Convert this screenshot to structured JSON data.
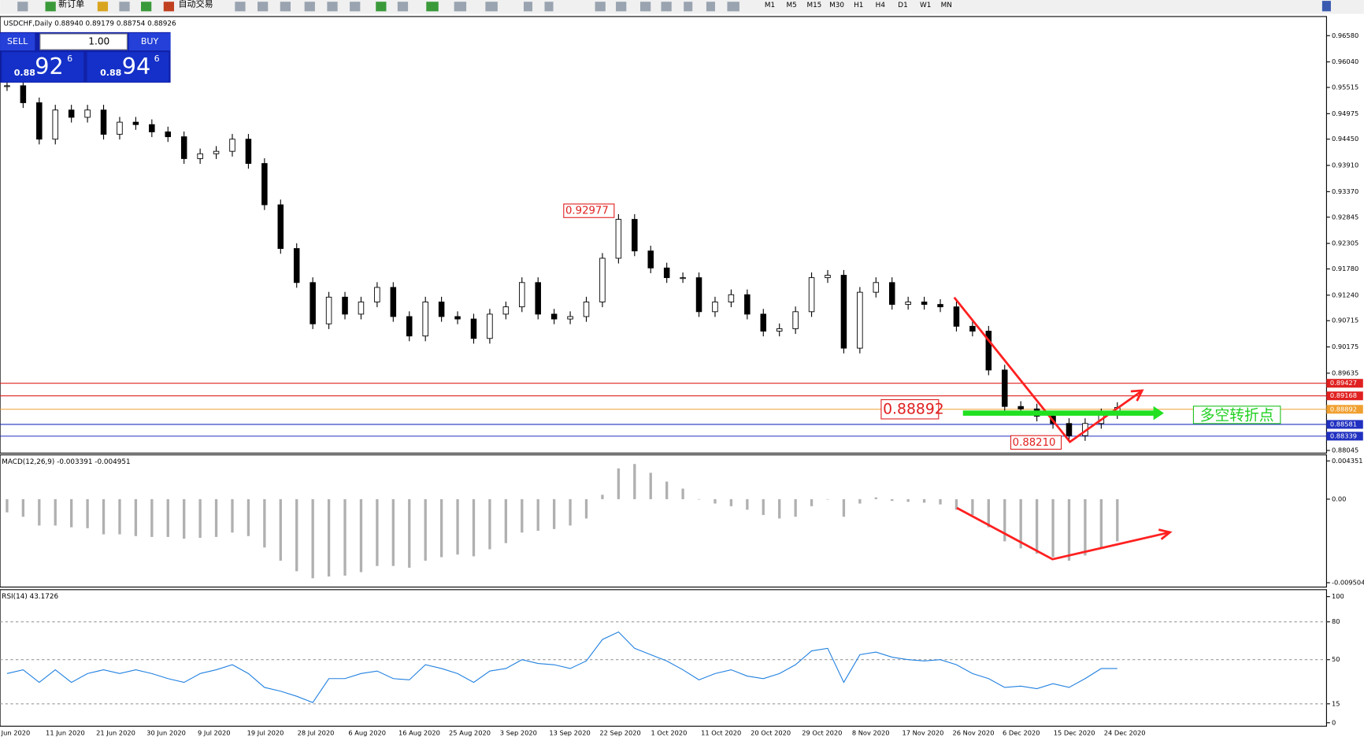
{
  "toolbar": {
    "new_order": "新订单",
    "auto_trade": "自动交易",
    "timeframes": [
      "M1",
      "M5",
      "M15",
      "M30",
      "H1",
      "H4",
      "D1",
      "W1",
      "MN"
    ]
  },
  "trade_panel": {
    "sell": "SELL",
    "buy": "BUY",
    "lots": "1.00",
    "sell_price": {
      "big": "0.88",
      "main": "92",
      "small": "6"
    },
    "buy_price": {
      "big": "0.88",
      "main": "94",
      "small": "6"
    }
  },
  "chart": {
    "header": "USDCHF,Daily  0.88940 0.89179 0.88754 0.88926",
    "ylim": [
      0.8799,
      0.9692
    ],
    "yticks": [
      {
        "value": 0.9658,
        "label": "0.96580"
      },
      {
        "value": 0.9604,
        "label": "0.96040"
      },
      {
        "value": 0.95515,
        "label": "0.95515"
      },
      {
        "value": 0.94975,
        "label": "0.94975"
      },
      {
        "value": 0.9445,
        "label": "0.94450"
      },
      {
        "value": 0.9391,
        "label": "0.93910"
      },
      {
        "value": 0.9337,
        "label": "0.93370"
      },
      {
        "value": 0.92845,
        "label": "0.92845"
      },
      {
        "value": 0.92305,
        "label": "0.92305"
      },
      {
        "value": 0.9178,
        "label": "0.91780"
      },
      {
        "value": 0.9124,
        "label": "0.91240"
      },
      {
        "value": 0.90715,
        "label": "0.90715"
      },
      {
        "value": 0.90175,
        "label": "0.90175"
      },
      {
        "value": 0.89635,
        "label": "0.89635"
      },
      {
        "value": 0.88045,
        "label": "0.88045"
      }
    ],
    "levels": [
      {
        "value": 0.89427,
        "color": "#e02020"
      },
      {
        "value": 0.89168,
        "color": "#e02020"
      },
      {
        "value": 0.88892,
        "color": "#f0a030"
      },
      {
        "value": 0.88581,
        "color": "#2030c0"
      },
      {
        "value": 0.88339,
        "color": "#2030c0"
      }
    ],
    "annotations": [
      {
        "value": 0.92977,
        "label": "0.92977"
      },
      {
        "value": 0.88892,
        "label": "0.88892"
      },
      {
        "value": 0.8821,
        "label": "0.88210"
      }
    ],
    "note": "多空转折点",
    "closes": [
      0.9555,
      0.952,
      0.9445,
      0.9505,
      0.949,
      0.9505,
      0.9455,
      0.948,
      0.9475,
      0.946,
      0.945,
      0.9405,
      0.9415,
      0.942,
      0.9445,
      0.9395,
      0.931,
      0.922,
      0.915,
      0.9065,
      0.912,
      0.9085,
      0.911,
      0.914,
      0.908,
      0.904,
      0.911,
      0.908,
      0.9075,
      0.9035,
      0.9085,
      0.91,
      0.915,
      0.9085,
      0.9075,
      0.908,
      0.911,
      0.92,
      0.928,
      0.9215,
      0.918,
      0.916,
      0.916,
      0.909,
      0.911,
      0.9125,
      0.9085,
      0.905,
      0.9055,
      0.909,
      0.916,
      0.9165,
      0.9015,
      0.913,
      0.915,
      0.9105,
      0.911,
      0.9105,
      0.91,
      0.906,
      0.905,
      0.897,
      0.8895,
      0.889,
      0.8875,
      0.886,
      0.8835,
      0.886,
      0.888,
      0.8893
    ],
    "dates": [
      "Jun 2020",
      "11 Jun 2020",
      "21 Jun 2020",
      "30 Jun 2020",
      "9 Jul 2020",
      "19 Jul 2020",
      "28 Jul 2020",
      "6 Aug 2020",
      "16 Aug 2020",
      "25 Aug 2020",
      "3 Sep 2020",
      "13 Sep 2020",
      "22 Sep 2020",
      "1 Oct 2020",
      "11 Oct 2020",
      "20 Oct 2020",
      "29 Oct 2020",
      "8 Nov 2020",
      "17 Nov 2020",
      "26 Nov 2020",
      "6 Dec 2020",
      "15 Dec 2020",
      "24 Dec 2020"
    ],
    "macd": {
      "label": "MACD(12,26,9) -0.003391 -0.004951",
      "ylim": [
        -0.01,
        0.00504
      ],
      "yticks": [
        0.004351,
        {
          "value": 0,
          "label": "0.00"
        },
        -0.009504
      ],
      "values": [
        -0.0015,
        -0.002,
        -0.003,
        -0.003,
        -0.0032,
        -0.0033,
        -0.004,
        -0.004,
        -0.0042,
        -0.0043,
        -0.0043,
        -0.0045,
        -0.0044,
        -0.0043,
        -0.0038,
        -0.0042,
        -0.0055,
        -0.007,
        -0.0082,
        -0.009,
        -0.0088,
        -0.0087,
        -0.0083,
        -0.0076,
        -0.0076,
        -0.0078,
        -0.007,
        -0.0066,
        -0.0063,
        -0.0065,
        -0.0057,
        -0.005,
        -0.0038,
        -0.0036,
        -0.0034,
        -0.003,
        -0.0022,
        0.0005,
        0.0035,
        0.004,
        0.003,
        0.002,
        0.0012,
        0,
        -0.0005,
        -0.0008,
        -0.0012,
        -0.0018,
        -0.0022,
        -0.002,
        -0.0008,
        0,
        -0.002,
        -0.0005,
        0.0002,
        -0.0002,
        -0.0003,
        -0.0004,
        -0.0006,
        -0.0012,
        -0.0018,
        -0.0032,
        -0.0048,
        -0.0056,
        -0.0062,
        -0.0066,
        -0.007,
        -0.0064,
        -0.0056,
        -0.0048
      ]
    },
    "rsi": {
      "label": "RSI(14) 43.1726",
      "ylim": [
        0,
        100
      ],
      "yticks": [
        100,
        80,
        50,
        15,
        0
      ],
      "values": [
        39,
        42,
        32,
        42,
        32,
        39,
        42,
        39,
        42,
        39,
        35,
        32,
        39,
        42,
        46,
        39,
        28,
        25,
        21,
        16,
        35,
        35,
        39,
        41,
        35,
        34,
        46,
        43,
        39,
        32,
        41,
        43,
        50,
        47,
        46,
        43,
        49,
        66,
        72,
        59,
        54,
        49,
        42,
        34,
        39,
        42,
        37,
        35,
        39,
        46,
        57,
        59,
        32,
        54,
        56,
        52,
        50,
        49,
        50,
        46,
        39,
        35,
        28,
        29,
        27,
        31,
        28,
        35,
        43,
        43
      ]
    }
  }
}
